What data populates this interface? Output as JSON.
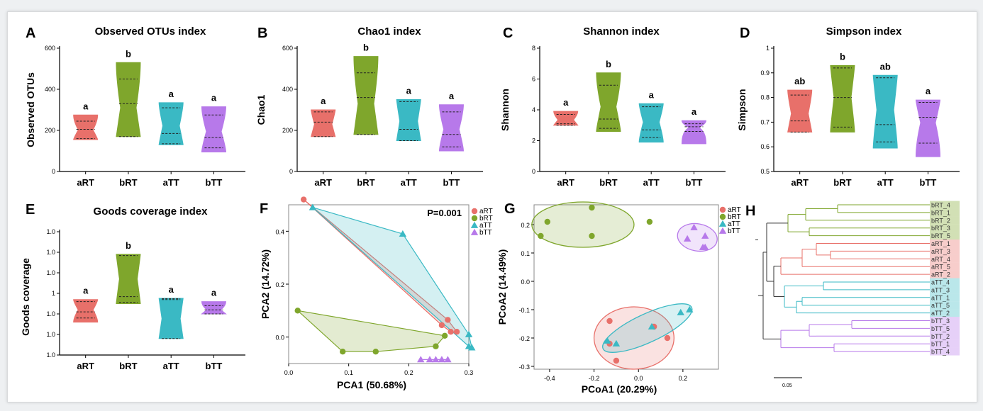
{
  "colors": {
    "aRT": "#e8706a",
    "bRT": "#7fa62c",
    "aTT": "#3ab9c4",
    "bTT": "#b779ea"
  },
  "chart_data": [
    {
      "panel": "A",
      "type": "violin",
      "title": "Observed OTUs index",
      "ylabel": "Observed OTUs",
      "ylim": [
        0,
        600
      ],
      "yticks": [
        0,
        200,
        400,
        600
      ],
      "categories": [
        "aRT",
        "bRT",
        "aTT",
        "bTT"
      ],
      "groups": [
        {
          "name": "aRT",
          "min": 155,
          "q1": 160,
          "median": 205,
          "q3": 245,
          "max": 275,
          "label": "a"
        },
        {
          "name": "bRT",
          "min": 170,
          "q1": 170,
          "median": 330,
          "q3": 450,
          "max": 530,
          "label": "b"
        },
        {
          "name": "aTT",
          "min": 130,
          "q1": 135,
          "median": 185,
          "q3": 310,
          "max": 335,
          "label": "a"
        },
        {
          "name": "bTT",
          "min": 95,
          "q1": 115,
          "median": 165,
          "q3": 275,
          "max": 315,
          "label": "a"
        }
      ]
    },
    {
      "panel": "B",
      "type": "violin",
      "title": "Chao1 index",
      "ylabel": "Chao1",
      "ylim": [
        0,
        600
      ],
      "yticks": [
        0,
        200,
        400,
        600
      ],
      "categories": [
        "aRT",
        "bRT",
        "aTT",
        "bTT"
      ],
      "groups": [
        {
          "name": "aRT",
          "min": 170,
          "q1": 170,
          "median": 240,
          "q3": 290,
          "max": 300,
          "label": "a"
        },
        {
          "name": "bRT",
          "min": 180,
          "q1": 180,
          "median": 360,
          "q3": 480,
          "max": 560,
          "label": "b"
        },
        {
          "name": "aTT",
          "min": 150,
          "q1": 150,
          "median": 205,
          "q3": 340,
          "max": 350,
          "label": "a"
        },
        {
          "name": "bTT",
          "min": 100,
          "q1": 120,
          "median": 180,
          "q3": 290,
          "max": 325,
          "label": "a"
        }
      ]
    },
    {
      "panel": "C",
      "type": "violin",
      "title": "Shannon index",
      "ylabel": "Shannon",
      "ylim": [
        0,
        8
      ],
      "yticks": [
        0,
        2,
        4,
        6,
        8
      ],
      "categories": [
        "aRT",
        "bRT",
        "aTT",
        "bTT"
      ],
      "groups": [
        {
          "name": "aRT",
          "min": 3.0,
          "q1": 3.0,
          "median": 3.1,
          "q3": 3.7,
          "max": 3.9,
          "label": "a"
        },
        {
          "name": "bRT",
          "min": 2.6,
          "q1": 2.8,
          "median": 3.4,
          "q3": 5.6,
          "max": 6.4,
          "label": "b"
        },
        {
          "name": "aTT",
          "min": 1.9,
          "q1": 2.2,
          "median": 2.7,
          "q3": 4.2,
          "max": 4.4,
          "label": "a"
        },
        {
          "name": "bTT",
          "min": 1.8,
          "q1": 2.6,
          "median": 2.9,
          "q3": 3.1,
          "max": 3.3,
          "label": "a"
        }
      ]
    },
    {
      "panel": "D",
      "type": "violin",
      "title": "Simpson index",
      "ylabel": "Simpson",
      "ylim": [
        0.5,
        1.0
      ],
      "yticks": [
        0.5,
        0.6,
        0.7,
        0.8,
        0.9,
        1.0
      ],
      "categories": [
        "aRT",
        "bRT",
        "aTT",
        "bTT"
      ],
      "groups": [
        {
          "name": "aRT",
          "min": 0.66,
          "q1": 0.66,
          "median": 0.705,
          "q3": 0.81,
          "max": 0.83,
          "label": "ab"
        },
        {
          "name": "bRT",
          "min": 0.66,
          "q1": 0.68,
          "median": 0.8,
          "q3": 0.92,
          "max": 0.93,
          "label": "b"
        },
        {
          "name": "aTT",
          "min": 0.595,
          "q1": 0.62,
          "median": 0.69,
          "q3": 0.88,
          "max": 0.89,
          "label": "ab"
        },
        {
          "name": "bTT",
          "min": 0.56,
          "q1": 0.615,
          "median": 0.72,
          "q3": 0.78,
          "max": 0.79,
          "label": "a"
        }
      ]
    },
    {
      "panel": "E",
      "type": "violin",
      "title": "Goods coverage index",
      "ylabel": "Goods coverage",
      "ylim": [
        0.985,
        1.015
      ],
      "yticks": [
        0.985,
        0.99,
        0.995,
        1.0,
        1.005,
        1.01,
        1.015
      ],
      "categories": [
        "aRT",
        "bRT",
        "aTT",
        "bTT"
      ],
      "groups": [
        {
          "name": "aRT",
          "min": 0.993,
          "q1": 0.994,
          "median": 0.9955,
          "q3": 0.998,
          "max": 0.9985,
          "label": "a"
        },
        {
          "name": "bRT",
          "min": 0.9975,
          "q1": 0.9978,
          "median": 0.9992,
          "q3": 1.0092,
          "max": 1.0095,
          "label": "b"
        },
        {
          "name": "aTT",
          "min": 0.989,
          "q1": 0.989,
          "median": 0.9985,
          "q3": 0.9987,
          "max": 0.9988,
          "label": "a"
        },
        {
          "name": "bTT",
          "min": 0.995,
          "q1": 0.995,
          "median": 0.996,
          "q3": 0.997,
          "max": 0.998,
          "label": "a"
        }
      ]
    },
    {
      "panel": "F",
      "type": "scatter",
      "xlabel": "PCA1 (50.68%)",
      "ylabel": "PCA2 (14.72%)",
      "annotation": "P=0.001",
      "xlim": [
        0,
        0.3
      ],
      "ylim": [
        -0.1,
        0.5
      ],
      "xticks": [
        0.0,
        0.1,
        0.2,
        0.3
      ],
      "yticks": [
        0.0,
        0.2,
        0.4
      ],
      "series": [
        {
          "name": "aRT",
          "marker": "circle",
          "points": [
            [
              0.025,
              0.52
            ],
            [
              0.265,
              0.065
            ],
            [
              0.27,
              0.02
            ],
            [
              0.255,
              0.045
            ],
            [
              0.28,
              0.02
            ]
          ]
        },
        {
          "name": "bRT",
          "marker": "circle",
          "points": [
            [
              0.015,
              0.1
            ],
            [
              0.09,
              -0.055
            ],
            [
              0.145,
              -0.055
            ],
            [
              0.245,
              -0.035
            ],
            [
              0.26,
              0.005
            ]
          ]
        },
        {
          "name": "aTT",
          "marker": "triangle",
          "points": [
            [
              0.04,
              0.49
            ],
            [
              0.19,
              0.39
            ],
            [
              0.3,
              0.01
            ],
            [
              0.3,
              -0.035
            ],
            [
              0.305,
              -0.04
            ]
          ]
        },
        {
          "name": "bTT",
          "marker": "triangle",
          "points": [
            [
              0.22,
              -0.085
            ],
            [
              0.235,
              -0.085
            ],
            [
              0.245,
              -0.085
            ],
            [
              0.255,
              -0.085
            ],
            [
              0.265,
              -0.085
            ]
          ]
        }
      ]
    },
    {
      "panel": "G",
      "type": "scatter",
      "xlabel": "PCoA1 (20.29%)",
      "ylabel": "PCoA2 (14.49%)",
      "xlim": [
        -0.47,
        0.36
      ],
      "ylim": [
        -0.31,
        0.27
      ],
      "xticks": [
        -0.4,
        -0.2,
        0.0,
        0.2
      ],
      "yticks": [
        -0.3,
        -0.2,
        -0.1,
        0.0,
        0.1,
        0.2
      ],
      "series": [
        {
          "name": "aRT",
          "marker": "circle",
          "points": [
            [
              -0.13,
              -0.14
            ],
            [
              -0.13,
              -0.22
            ],
            [
              -0.1,
              -0.28
            ],
            [
              0.07,
              -0.16
            ],
            [
              0.13,
              -0.2
            ]
          ]
        },
        {
          "name": "bRT",
          "marker": "circle",
          "points": [
            [
              -0.41,
              0.21
            ],
            [
              -0.44,
              0.16
            ],
            [
              -0.21,
              0.26
            ],
            [
              -0.21,
              0.16
            ],
            [
              0.05,
              0.21
            ]
          ]
        },
        {
          "name": "aTT",
          "marker": "triangle",
          "points": [
            [
              -0.14,
              -0.21
            ],
            [
              -0.1,
              -0.22
            ],
            [
              0.06,
              -0.16
            ],
            [
              0.19,
              -0.11
            ],
            [
              0.23,
              -0.1
            ]
          ]
        },
        {
          "name": "bTT",
          "marker": "triangle",
          "points": [
            [
              0.22,
              0.15
            ],
            [
              0.25,
              0.19
            ],
            [
              0.3,
              0.16
            ],
            [
              0.3,
              0.12
            ],
            [
              0.29,
              0.12
            ]
          ]
        }
      ]
    },
    {
      "panel": "H",
      "type": "dendrogram",
      "scale_label": "0.05",
      "leaves": [
        {
          "label": "bRT_4",
          "group": "bRT"
        },
        {
          "label": "bRT_1",
          "group": "bRT"
        },
        {
          "label": "bRT_2",
          "group": "bRT"
        },
        {
          "label": "bRT_3",
          "group": "bRT"
        },
        {
          "label": "bRT_5",
          "group": "bRT"
        },
        {
          "label": "aRT_1",
          "group": "aRT"
        },
        {
          "label": "aRT_3",
          "group": "aRT"
        },
        {
          "label": "aRT_4",
          "group": "aRT"
        },
        {
          "label": "aRT_5",
          "group": "aRT"
        },
        {
          "label": "aRT_2",
          "group": "aRT"
        },
        {
          "label": "aTT_4",
          "group": "aTT"
        },
        {
          "label": "aTT_3",
          "group": "aTT"
        },
        {
          "label": "aTT_1",
          "group": "aTT"
        },
        {
          "label": "aTT_5",
          "group": "aTT"
        },
        {
          "label": "aTT_2",
          "group": "aTT"
        },
        {
          "label": "bTT_3",
          "group": "bTT"
        },
        {
          "label": "bTT_5",
          "group": "bTT"
        },
        {
          "label": "bTT_2",
          "group": "bTT"
        },
        {
          "label": "bTT_1",
          "group": "bTT"
        },
        {
          "label": "bTT_4",
          "group": "bTT"
        }
      ]
    }
  ]
}
